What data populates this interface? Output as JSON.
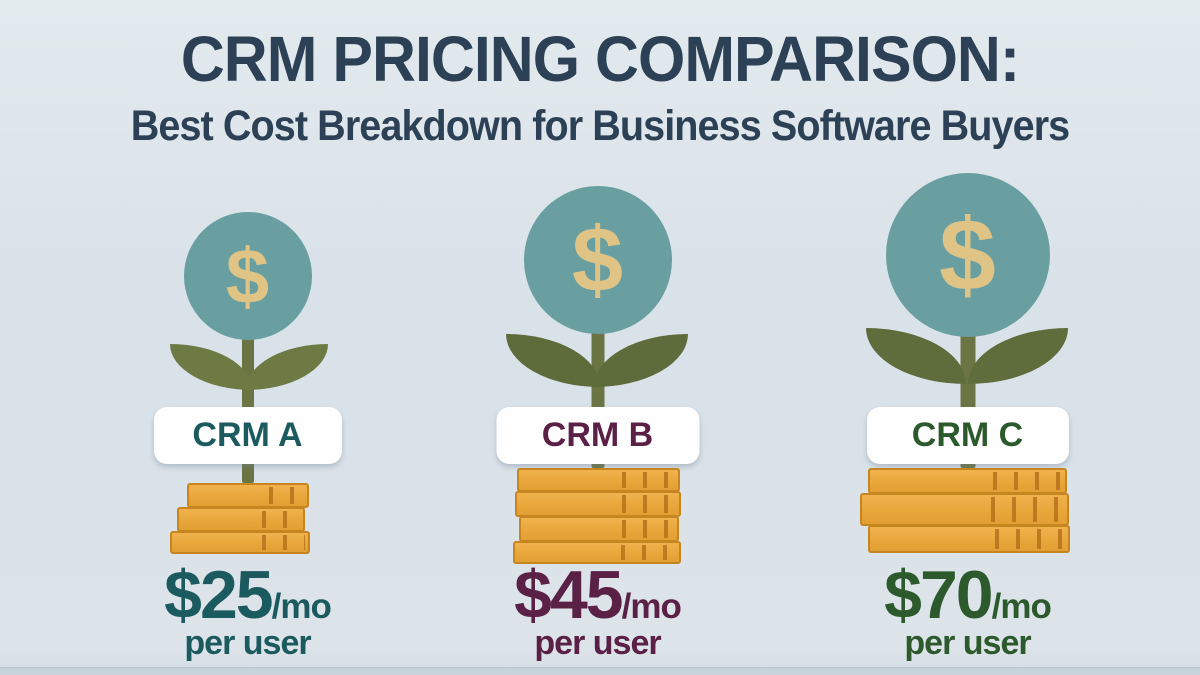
{
  "header": {
    "title": "CRM PRICING COMPARISON:",
    "subtitle": "Best Cost Breakdown for Business Software Buyers"
  },
  "plants": [
    {
      "id": "crm-a",
      "label": "CRM A",
      "dollar_symbol": "$",
      "price": "$25",
      "period": "/mo",
      "per_user": "per user",
      "accent_color": "#1b5a5f",
      "leaf_color": "#6d7a43",
      "coin_rows": 3
    },
    {
      "id": "crm-b",
      "label": "CRM B",
      "dollar_symbol": "$",
      "price": "$45",
      "period": "/mo",
      "per_user": "per user",
      "accent_color": "#5a2046",
      "leaf_color": "#5e6b3a",
      "coin_rows": 4
    },
    {
      "id": "crm-c",
      "label": "CRM C",
      "dollar_symbol": "$",
      "price": "$70",
      "period": "/mo",
      "per_user": "per user",
      "accent_color": "#2d5a2d",
      "leaf_color": "#5f6c3b",
      "coin_rows": 3
    }
  ],
  "colors": {
    "background": "#dbe3e9",
    "title_text": "#2d4156",
    "flower_circle": "#699fa0",
    "dollar_glyph": "#dfc486",
    "stem": "#6b7544",
    "coin_body": "#e8a63a",
    "coin_edge": "#c7851f",
    "label_card": "#fefefe"
  },
  "chart_data": {
    "type": "bar",
    "title": "CRM PRICING COMPARISON:",
    "subtitle": "Best Cost Breakdown for Business Software Buyers",
    "categories": [
      "CRM A",
      "CRM B",
      "CRM C"
    ],
    "values": [
      25,
      45,
      70
    ],
    "value_labels": [
      "$25/mo per user",
      "$45/mo per user",
      "$70/mo per user"
    ],
    "unit": "USD per month per user",
    "xlabel": "",
    "ylabel": "Monthly price per user ($)",
    "legend": "none",
    "grid": false
  }
}
